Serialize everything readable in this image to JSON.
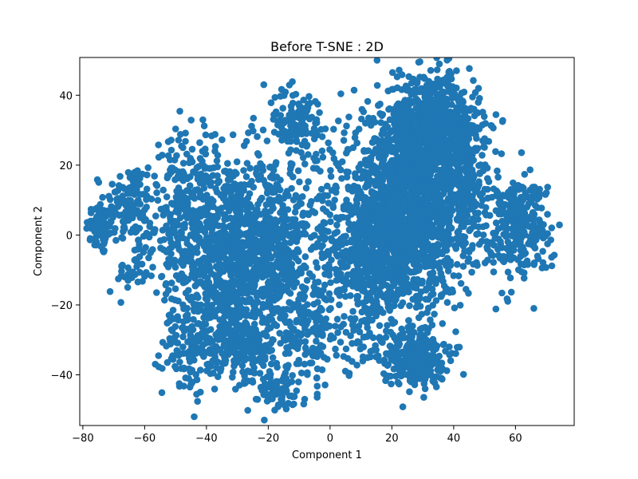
{
  "chart_data": {
    "type": "scatter",
    "title": "Before T-SNE : 2D",
    "xlabel": "Component 1",
    "ylabel": "Component 2",
    "xlim": [
      -81,
      79
    ],
    "ylim": [
      -54.5,
      50.8
    ],
    "xticks": [
      -80,
      -60,
      -40,
      -20,
      0,
      20,
      40,
      60
    ],
    "yticks": [
      -40,
      -20,
      0,
      20,
      40
    ],
    "grid": false,
    "legend": "none",
    "series": [
      {
        "name": "points",
        "color": "#1f77b4",
        "clusters": [
          {
            "name": "far-left",
            "center": [
              -74,
              2
            ],
            "spread": [
              2.5,
              4
            ],
            "count": 70
          },
          {
            "name": "upper-left",
            "center": [
              -65,
              9
            ],
            "spread": [
              4,
              6
            ],
            "count": 120
          },
          {
            "name": "left-lower",
            "center": [
              -63,
              -10
            ],
            "spread": [
              3,
              4
            ],
            "count": 40
          },
          {
            "name": "left-mid",
            "center": [
              -48,
              5
            ],
            "spread": [
              5,
              12
            ],
            "count": 260
          },
          {
            "name": "left-bottom",
            "center": [
              -44,
              -30
            ],
            "spread": [
              5,
              8
            ],
            "count": 150
          },
          {
            "name": "center-left",
            "center": [
              -33,
              -5
            ],
            "spread": [
              7,
              14
            ],
            "count": 700
          },
          {
            "name": "center-left-low",
            "center": [
              -28,
              -30
            ],
            "spread": [
              6,
              6
            ],
            "count": 200
          },
          {
            "name": "center",
            "center": [
              -18,
              -5
            ],
            "spread": [
              6,
              14
            ],
            "count": 500
          },
          {
            "name": "bottom-center",
            "center": [
              -18,
              -45
            ],
            "spread": [
              5,
              3
            ],
            "count": 60
          },
          {
            "name": "top-small",
            "center": [
              -10,
              32
            ],
            "spread": [
              5,
              5
            ],
            "count": 120
          },
          {
            "name": "center-low",
            "center": [
              -6,
              -28
            ],
            "spread": [
              4,
              8
            ],
            "count": 120
          },
          {
            "name": "right-big-core",
            "center": [
              25,
              8
            ],
            "spread": [
              11,
              14
            ],
            "count": 1500
          },
          {
            "name": "right-top",
            "center": [
              33,
              30
            ],
            "spread": [
              7,
              8
            ],
            "count": 700
          },
          {
            "name": "right-mid",
            "center": [
              15,
              -5
            ],
            "spread": [
              10,
              10
            ],
            "count": 500
          },
          {
            "name": "right-bottom",
            "center": [
              27,
              -35
            ],
            "spread": [
              5,
              4
            ],
            "count": 250
          },
          {
            "name": "far-right",
            "center": [
              61,
              3
            ],
            "spread": [
              5,
              7
            ],
            "count": 300
          },
          {
            "name": "right-scatter",
            "center": [
              45,
              15
            ],
            "spread": [
              5,
              10
            ],
            "count": 120
          },
          {
            "name": "lower-mid-scatter",
            "center": [
              10,
              -25
            ],
            "spread": [
              6,
              8
            ],
            "count": 80
          }
        ]
      }
    ]
  }
}
